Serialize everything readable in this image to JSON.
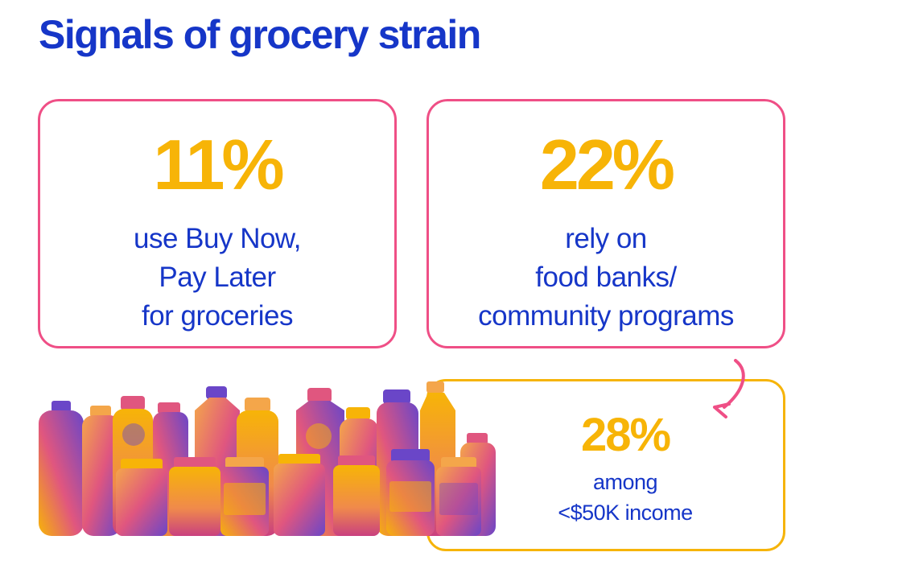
{
  "title": "Signals of grocery strain",
  "stats": [
    {
      "value": "11%",
      "lines": [
        "use Buy Now,",
        "Pay Later",
        "for groceries"
      ]
    },
    {
      "value": "22%",
      "lines": [
        "rely on",
        "food banks/",
        "community programs"
      ]
    }
  ],
  "sub_stat": {
    "value": "28%",
    "lines": [
      "among",
      "<$50K income"
    ]
  },
  "colors": {
    "title": "#1636c8",
    "number": "#f7b407",
    "card_border": "#ef4f86",
    "sub_card_border": "#f6b40a",
    "bottle_pink": "#e0567f",
    "bottle_purple": "#6a46c8",
    "bottle_orange": "#f4a64a"
  },
  "image": {
    "subject": "bottles-and-jars-image"
  },
  "icons": {
    "arrow": "curved-arrow-icon"
  }
}
